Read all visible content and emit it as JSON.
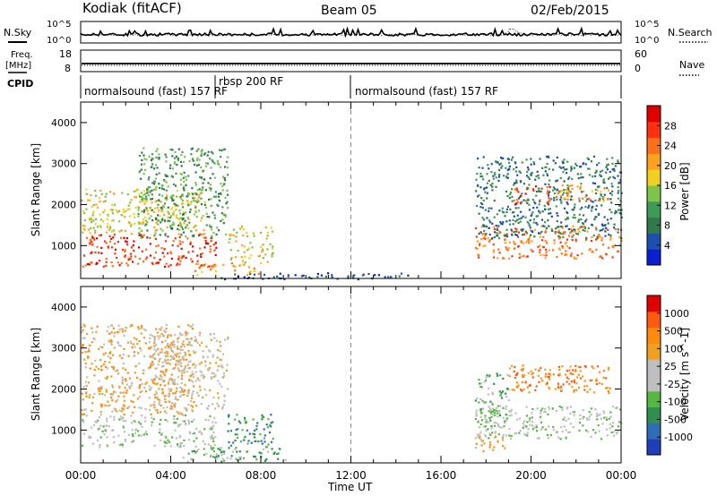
{
  "header": {
    "station": "Kodiak (fitACF)",
    "beam": "Beam 05",
    "date": "02/Feb/2015"
  },
  "top_panels": {
    "nsky_label": "N.Sky",
    "nsearch_label": "N.Search",
    "noise_tick_top": "10^5",
    "noise_tick_bottom": "10^0",
    "freq_label": "Freq.",
    "freq_unit": "[MHz]",
    "freq_ticks": [
      "18",
      "8"
    ],
    "nave_label": "Nave",
    "nave_ticks": [
      "60",
      "0"
    ],
    "cpid_label": "CPID",
    "cpid_segments": [
      {
        "name": "normalsound (fast) 157 RF",
        "start": 0,
        "end": 6.1
      },
      {
        "name": "rbsp 200 RF",
        "start": 6.1,
        "end": 12.0
      },
      {
        "name": "normalsound (fast) 157 RF",
        "start": 12.0,
        "end": 24
      }
    ]
  },
  "power_colorbar": {
    "label": "Power [dB]",
    "ticks": [
      "28",
      "24",
      "20",
      "16",
      "12",
      "8",
      "4"
    ],
    "colors": [
      "#0a20d0",
      "#1c4fb0",
      "#2e7a4a",
      "#3f9a55",
      "#7cc54a",
      "#f0d020",
      "#ffa020",
      "#ff7018",
      "#ff3010",
      "#e00000"
    ]
  },
  "velocity_colorbar": {
    "label": "Velocity [m s^-1]",
    "ticks": [
      "1000",
      "500",
      "100",
      "25",
      "-25",
      "-100",
      "-500",
      "-1000"
    ],
    "colors": [
      "#1e3fb8",
      "#2f6db6",
      "#2f8f52",
      "#55b840",
      "#bebebe",
      "#bebebe",
      "#f0a020",
      "#ff8a10",
      "#ff5a10",
      "#e00000"
    ]
  },
  "chart_data": [
    {
      "type": "heatmap",
      "title": "Power",
      "ylabel": "Slant Range [km]",
      "xlabel": "Time UT",
      "xlim": [
        0,
        24
      ],
      "ylim": [
        200,
        4500
      ],
      "x_ticks": [
        "00:00",
        "04:00",
        "08:00",
        "12:00",
        "16:00",
        "20:00",
        "00:00"
      ],
      "y_ticks": [
        "1000",
        "2000",
        "3000",
        "4000"
      ],
      "regions": [
        {
          "t0": 0.0,
          "t1": 6.0,
          "r0": 500,
          "r1": 1300,
          "level": 8
        },
        {
          "t0": 0.0,
          "t1": 5.5,
          "r0": 1300,
          "r1": 2400,
          "level": 5
        },
        {
          "t0": 2.5,
          "t1": 6.5,
          "r0": 1200,
          "r1": 3400,
          "level": 3
        },
        {
          "t0": 5.0,
          "t1": 8.0,
          "r0": 300,
          "r1": 600,
          "level": 6
        },
        {
          "t0": 6.5,
          "t1": 8.5,
          "r0": 600,
          "r1": 1500,
          "level": 5
        },
        {
          "t0": 17.5,
          "t1": 24.0,
          "r0": 700,
          "r1": 1500,
          "level": 7
        },
        {
          "t0": 17.5,
          "t1": 24.0,
          "r0": 1200,
          "r1": 3200,
          "level": 2
        },
        {
          "t0": 19.2,
          "t1": 20.8,
          "r0": 2000,
          "r1": 2500,
          "level": 8
        },
        {
          "t0": 20.8,
          "t1": 23.5,
          "r0": 2100,
          "r1": 2500,
          "level": 6
        },
        {
          "t0": 6.0,
          "t1": 14.5,
          "r0": 200,
          "r1": 350,
          "level": 1
        }
      ]
    },
    {
      "type": "heatmap",
      "title": "Velocity",
      "ylabel": "Slant Range [km]",
      "xlabel": "Time UT",
      "xlim": [
        0,
        24
      ],
      "ylim": [
        200,
        4500
      ],
      "x_ticks": [
        "00:00",
        "04:00",
        "08:00",
        "12:00",
        "16:00",
        "20:00",
        "00:00"
      ],
      "y_ticks": [
        "1000",
        "2000",
        "3000",
        "4000"
      ],
      "regions": [
        {
          "t0": 0.0,
          "t1": 6.0,
          "r0": 600,
          "r1": 1400,
          "level": 4
        },
        {
          "t0": 0.0,
          "t1": 5.0,
          "r0": 1400,
          "r1": 3600,
          "level": 6
        },
        {
          "t0": 3.0,
          "t1": 6.5,
          "r0": 1500,
          "r1": 3400,
          "level": 5
        },
        {
          "t0": 4.5,
          "t1": 9.5,
          "r0": 250,
          "r1": 600,
          "level": 3
        },
        {
          "t0": 6.5,
          "t1": 8.5,
          "r0": 600,
          "r1": 1400,
          "level": 2
        },
        {
          "t0": 17.5,
          "t1": 24.0,
          "r0": 800,
          "r1": 1600,
          "level": 4
        },
        {
          "t0": 19.0,
          "t1": 23.5,
          "r0": 1900,
          "r1": 2600,
          "level": 7
        },
        {
          "t0": 17.5,
          "t1": 19.0,
          "r0": 1200,
          "r1": 2400,
          "level": 3
        },
        {
          "t0": 17.5,
          "t1": 19.0,
          "r0": 500,
          "r1": 900,
          "level": 6
        }
      ]
    }
  ]
}
